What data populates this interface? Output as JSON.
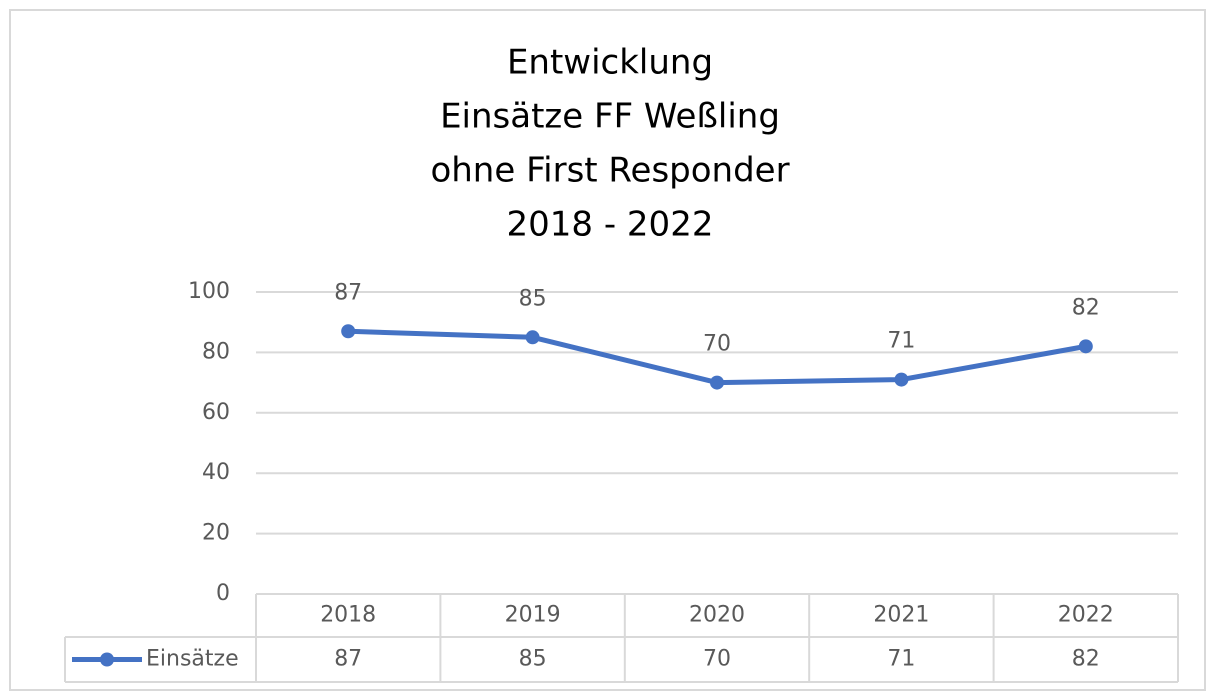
{
  "chart_data": {
    "type": "line",
    "title": [
      "Entwicklung",
      "Einsätze FF Weßling",
      "ohne First Responder",
      "2018 - 2022"
    ],
    "categories": [
      "2018",
      "2019",
      "2020",
      "2021",
      "2022"
    ],
    "series": [
      {
        "name": "Einsätze",
        "color": "#4472c4",
        "values": [
          87,
          85,
          70,
          71,
          82
        ]
      }
    ],
    "ylim": [
      0,
      100
    ],
    "yticks": [
      0,
      20,
      40,
      60,
      80,
      100
    ],
    "grid": true,
    "data_table": true
  }
}
